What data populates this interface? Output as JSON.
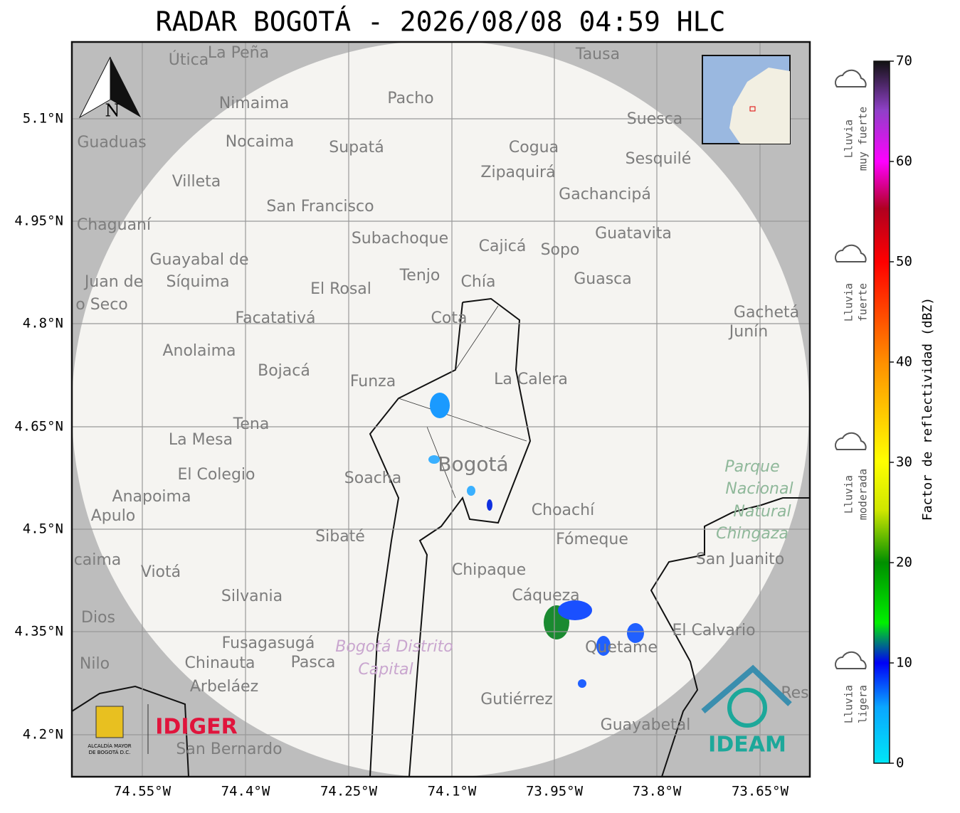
{
  "title": "RADAR BOGOTÁ - 2026/08/08 04:59 HLC",
  "lat_ticks": [
    "5.1°N",
    "4.95°N",
    "4.8°N",
    "4.65°N",
    "4.5°N",
    "4.35°N",
    "4.2°N"
  ],
  "lon_ticks": [
    "74.55°W",
    "74.4°W",
    "74.25°W",
    "74.1°W",
    "73.95°W",
    "73.8°W",
    "73.65°W"
  ],
  "north": "N",
  "colorbar": {
    "label": "Factor de reflectividad (dBZ)",
    "lim": [
      0,
      70
    ],
    "ticks": [
      0,
      10,
      20,
      30,
      40,
      50,
      60,
      70
    ]
  },
  "rain_levels": [
    {
      "lines": [
        "Lluvia",
        "muy fuerte"
      ]
    },
    {
      "lines": [
        "Lluvia",
        "fuerte"
      ]
    },
    {
      "lines": [
        "Lluvia",
        "moderada"
      ]
    },
    {
      "lines": [
        "Lluvia",
        "ligera"
      ]
    }
  ],
  "places": [
    "Útica",
    "La Peña",
    "Tausa",
    "Pacho",
    "Nimaima",
    "Guaduas",
    "Nocaima",
    "Supatá",
    "Cogua",
    "Suesca",
    "Sesquilé",
    "Zipaquirá",
    "Villeta",
    "Gachancipá",
    "San Francisco",
    "Chaguaní",
    "Guatavita",
    "Subachoque",
    "Cajicá",
    "Sopo",
    "Guayabal de",
    "Síquima",
    "Juan de",
    "Tenjo",
    "Chía",
    "Guasca",
    "El Rosal",
    "o Seco",
    "Facatativá",
    "Cota",
    "Gachetá",
    "Junín",
    "Anolaima",
    "Bojacá",
    "Funza",
    "La Calera",
    "Tena",
    "La Mesa",
    "Bogotá",
    "Soacha",
    "El Colegio",
    "Parque",
    "Nacional",
    "Natural",
    "Chingaza",
    "Anapoima",
    "Apulo",
    "Choachí",
    "Fómeque",
    "Sibaté",
    "San Juanito",
    "caima",
    "Viotá",
    "Chipaque",
    "Silvania",
    "Cáqueza",
    "Dios",
    "El Calvario",
    "Fusagasugá",
    "Bogotá Distrito",
    "Quetame",
    "Nilo",
    "Chinauta",
    "Pasca",
    "Capital",
    "Arbeláez",
    "Gutiérrez",
    "Res",
    "Guayabetal",
    "San Bernardo"
  ],
  "logos": {
    "alcaldia": [
      "ALCALDÍA MAYOR",
      "DE BOGOTÁ D.C."
    ],
    "idiger": "IDIGER",
    "ideam": "IDEAM"
  }
}
